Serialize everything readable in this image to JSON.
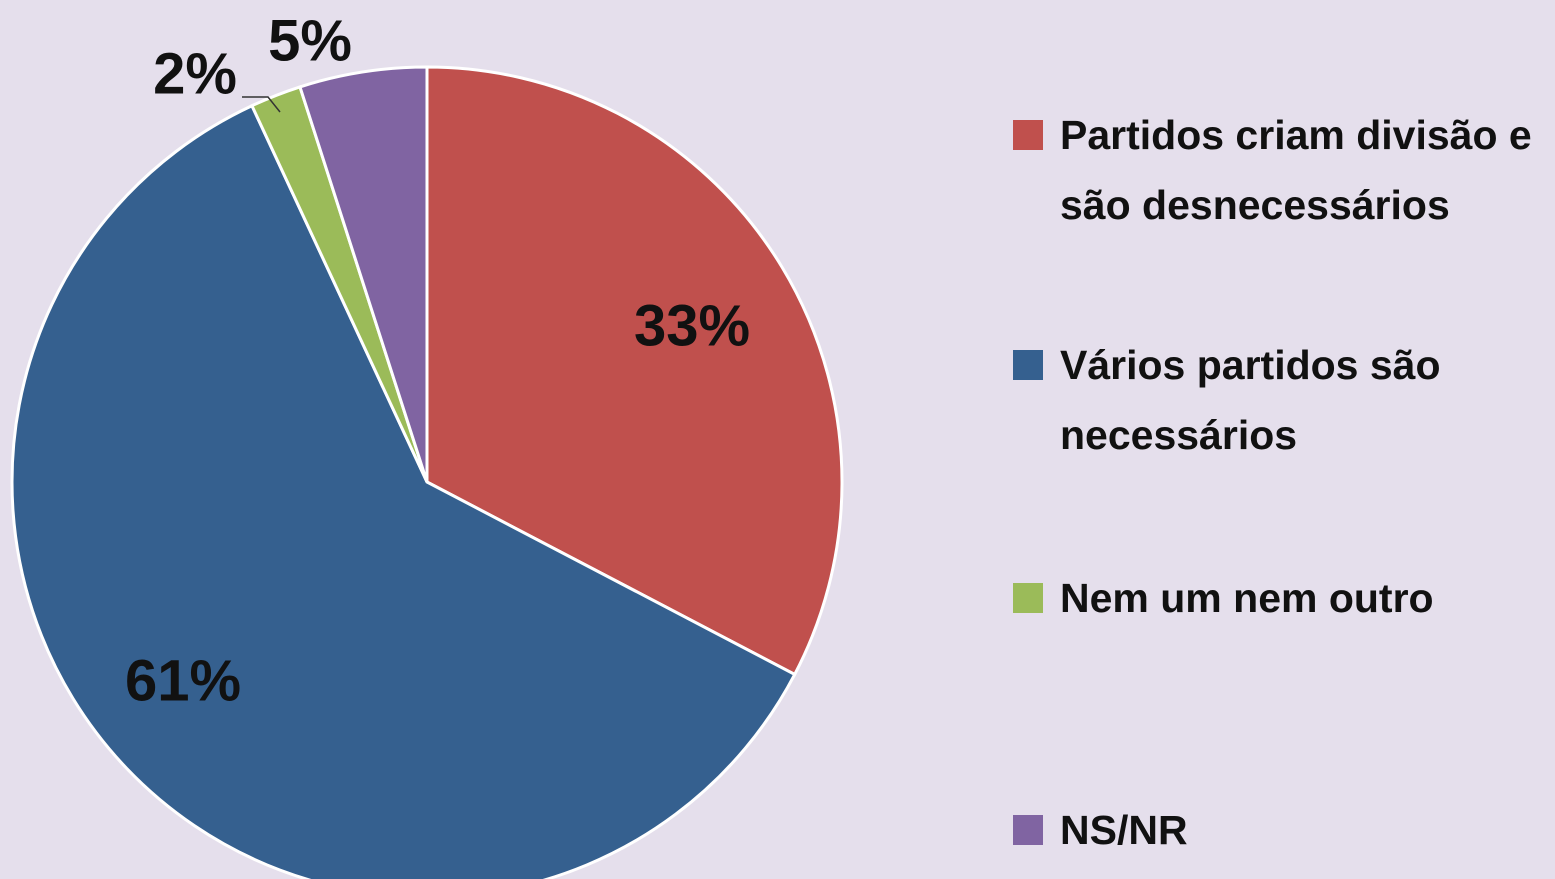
{
  "chart_data": {
    "type": "pie",
    "categories": [
      "Partidos criam divisão e são desnecessários",
      "Vários partidos são necessários",
      "Nem um nem outro",
      "NS/NR"
    ],
    "values": [
      33,
      61,
      2,
      5
    ],
    "value_labels": [
      "33%",
      "61%",
      "2%",
      "5%"
    ],
    "colors": [
      "#c0504d",
      "#35608f",
      "#9bbb59",
      "#8064a2"
    ],
    "legend": "right"
  }
}
